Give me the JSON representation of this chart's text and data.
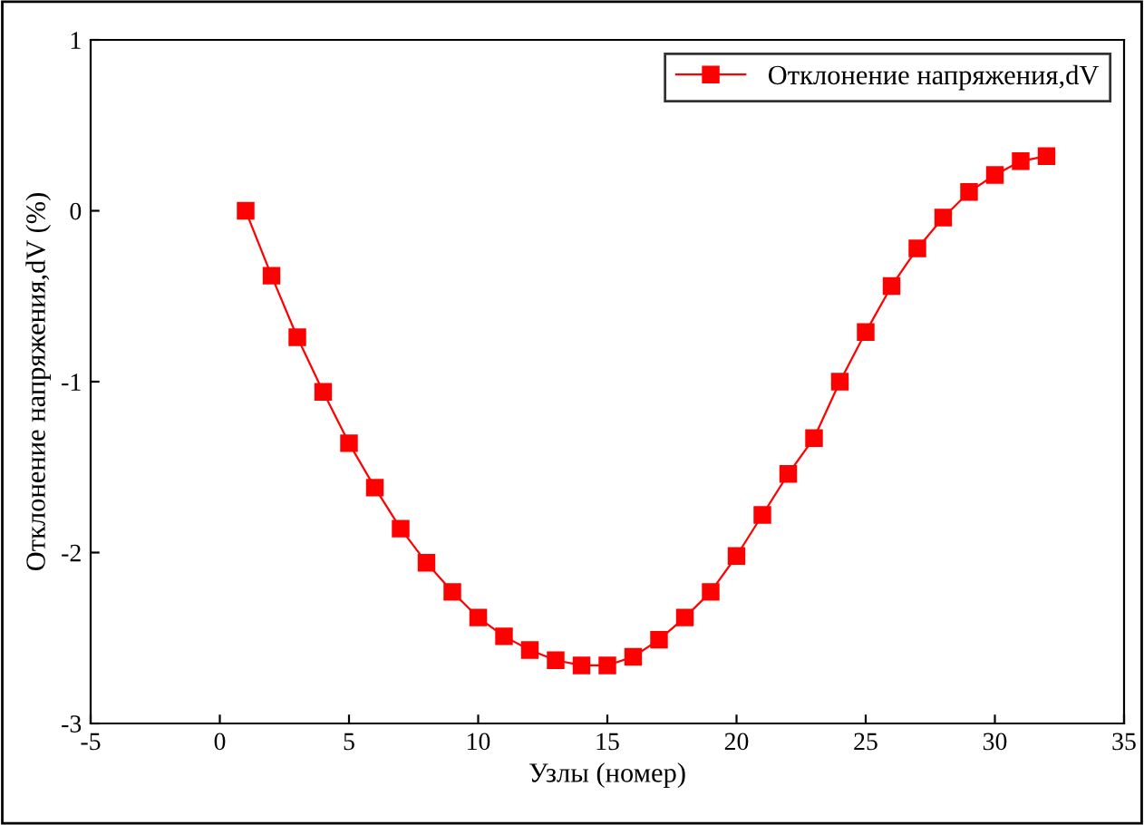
{
  "chart_data": {
    "type": "line",
    "xlabel": "Узлы (номер)",
    "ylabel": "Отклонение напряжения,dV (%)",
    "x": [
      1,
      2,
      3,
      4,
      5,
      6,
      7,
      8,
      9,
      10,
      11,
      12,
      13,
      14,
      15,
      16,
      17,
      18,
      19,
      20,
      21,
      22,
      23,
      24,
      25,
      26,
      27,
      28,
      29,
      30,
      31,
      32
    ],
    "series": [
      {
        "name": "Отклонение напряжения,dV",
        "color": "#ff0000",
        "values": [
          0,
          -0.38,
          -0.74,
          -1.06,
          -1.36,
          -1.62,
          -1.86,
          -2.06,
          -2.23,
          -2.38,
          -2.49,
          -2.57,
          -2.63,
          -2.66,
          -2.66,
          -2.61,
          -2.51,
          -2.38,
          -2.23,
          -2.02,
          -1.78,
          -1.54,
          -1.33,
          -1.0,
          -0.71,
          -0.44,
          -0.22,
          -0.04,
          0.11,
          0.21,
          0.29,
          0.32
        ]
      }
    ],
    "xlim": [
      -5,
      35
    ],
    "xticks": [
      -5,
      0,
      5,
      10,
      15,
      20,
      25,
      30,
      35
    ],
    "ylim": [
      -3,
      1
    ],
    "yticks": [
      -3,
      -2,
      -1,
      0,
      1
    ],
    "marker": "square",
    "line_style": "solid",
    "grid": false,
    "legend": "top right"
  }
}
